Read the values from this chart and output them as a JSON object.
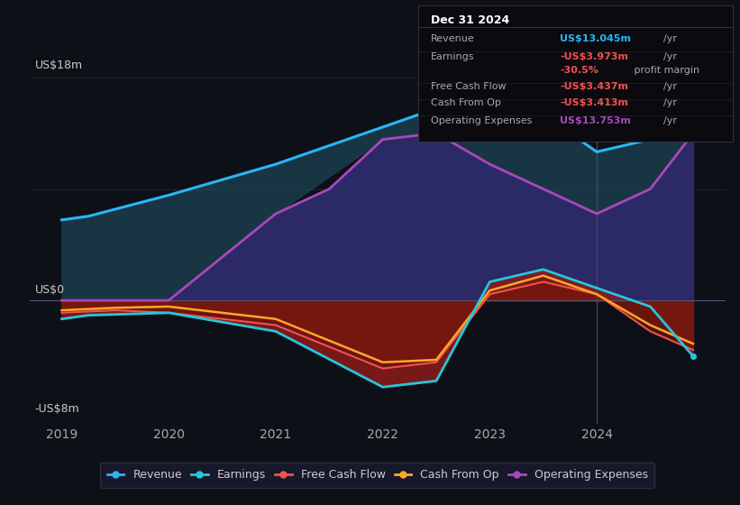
{
  "bg_color": "#0d1117",
  "plot_bg_color": "#0d1117",
  "title_label": "US$18m",
  "zero_label": "US$0",
  "neg_label": "-US$8m",
  "x_ticks": [
    2019,
    2020,
    2021,
    2022,
    2023,
    2024
  ],
  "x_min": 2018.7,
  "x_max": 2025.2,
  "y_min": -10,
  "y_max": 21,
  "revenue": {
    "x": [
      2019,
      2019.25,
      2020,
      2021,
      2022,
      2022.5,
      2023,
      2023.5,
      2024,
      2024.5,
      2024.9
    ],
    "y": [
      6.5,
      6.8,
      8.5,
      11,
      14,
      15.5,
      16,
      15,
      12,
      13,
      13.5
    ],
    "color": "#29b6f6",
    "label": "Revenue"
  },
  "opex": {
    "x": [
      2019,
      2019.25,
      2020,
      2021,
      2021.5,
      2022,
      2022.5,
      2023,
      2023.5,
      2024,
      2024.5,
      2024.9
    ],
    "y": [
      0,
      0,
      0,
      7,
      9,
      13,
      13.5,
      11,
      9,
      7,
      9,
      13.5
    ],
    "color": "#ab47bc",
    "label": "Operating Expenses"
  },
  "earnings": {
    "x": [
      2019,
      2019.25,
      2020,
      2021,
      2022,
      2022.5,
      2023,
      2023.5,
      2024,
      2024.5,
      2024.9
    ],
    "y": [
      -1.5,
      -1.2,
      -1.0,
      -2.5,
      -7.0,
      -6.5,
      1.5,
      2.5,
      1.0,
      -0.5,
      -4.5
    ],
    "color": "#26c6da",
    "label": "Earnings"
  },
  "fcf": {
    "x": [
      2019,
      2019.5,
      2020,
      2021,
      2022,
      2022.5,
      2023,
      2023.5,
      2024,
      2024.5,
      2024.9
    ],
    "y": [
      -1.0,
      -0.8,
      -1.0,
      -2.0,
      -5.5,
      -5.0,
      0.5,
      1.5,
      0.5,
      -2.5,
      -4.0
    ],
    "color": "#ef5350",
    "label": "Free Cash Flow"
  },
  "cashfromop": {
    "x": [
      2019,
      2019.5,
      2020,
      2021,
      2022,
      2022.5,
      2023,
      2023.5,
      2024,
      2024.5,
      2024.9
    ],
    "y": [
      -0.8,
      -0.6,
      -0.5,
      -1.5,
      -5.0,
      -4.8,
      0.8,
      2.0,
      0.5,
      -2.0,
      -3.5
    ],
    "color": "#ffa726",
    "label": "Cash From Op"
  },
  "vertical_line_x": 2024,
  "tooltip": {
    "date": "Dec 31 2024",
    "rows": [
      {
        "label": "Revenue",
        "value": "US$13.045m",
        "suffix": "/yr",
        "value_color": "#29b6f6"
      },
      {
        "label": "Earnings",
        "value": "-US$3.973m",
        "suffix": "/yr",
        "value_color": "#ef5350"
      },
      {
        "label": "",
        "value": "-30.5%",
        "suffix": " profit margin",
        "value_color": "#ef5350"
      },
      {
        "label": "Free Cash Flow",
        "value": "-US$3.437m",
        "suffix": "/yr",
        "value_color": "#ef5350"
      },
      {
        "label": "Cash From Op",
        "value": "-US$3.413m",
        "suffix": "/yr",
        "value_color": "#ef5350"
      },
      {
        "label": "Operating Expenses",
        "value": "US$13.753m",
        "suffix": "/yr",
        "value_color": "#ab47bc"
      }
    ]
  },
  "legend": [
    {
      "label": "Revenue",
      "color": "#29b6f6"
    },
    {
      "label": "Earnings",
      "color": "#26c6da"
    },
    {
      "label": "Free Cash Flow",
      "color": "#ef5350"
    },
    {
      "label": "Cash From Op",
      "color": "#ffa726"
    },
    {
      "label": "Operating Expenses",
      "color": "#ab47bc"
    }
  ]
}
